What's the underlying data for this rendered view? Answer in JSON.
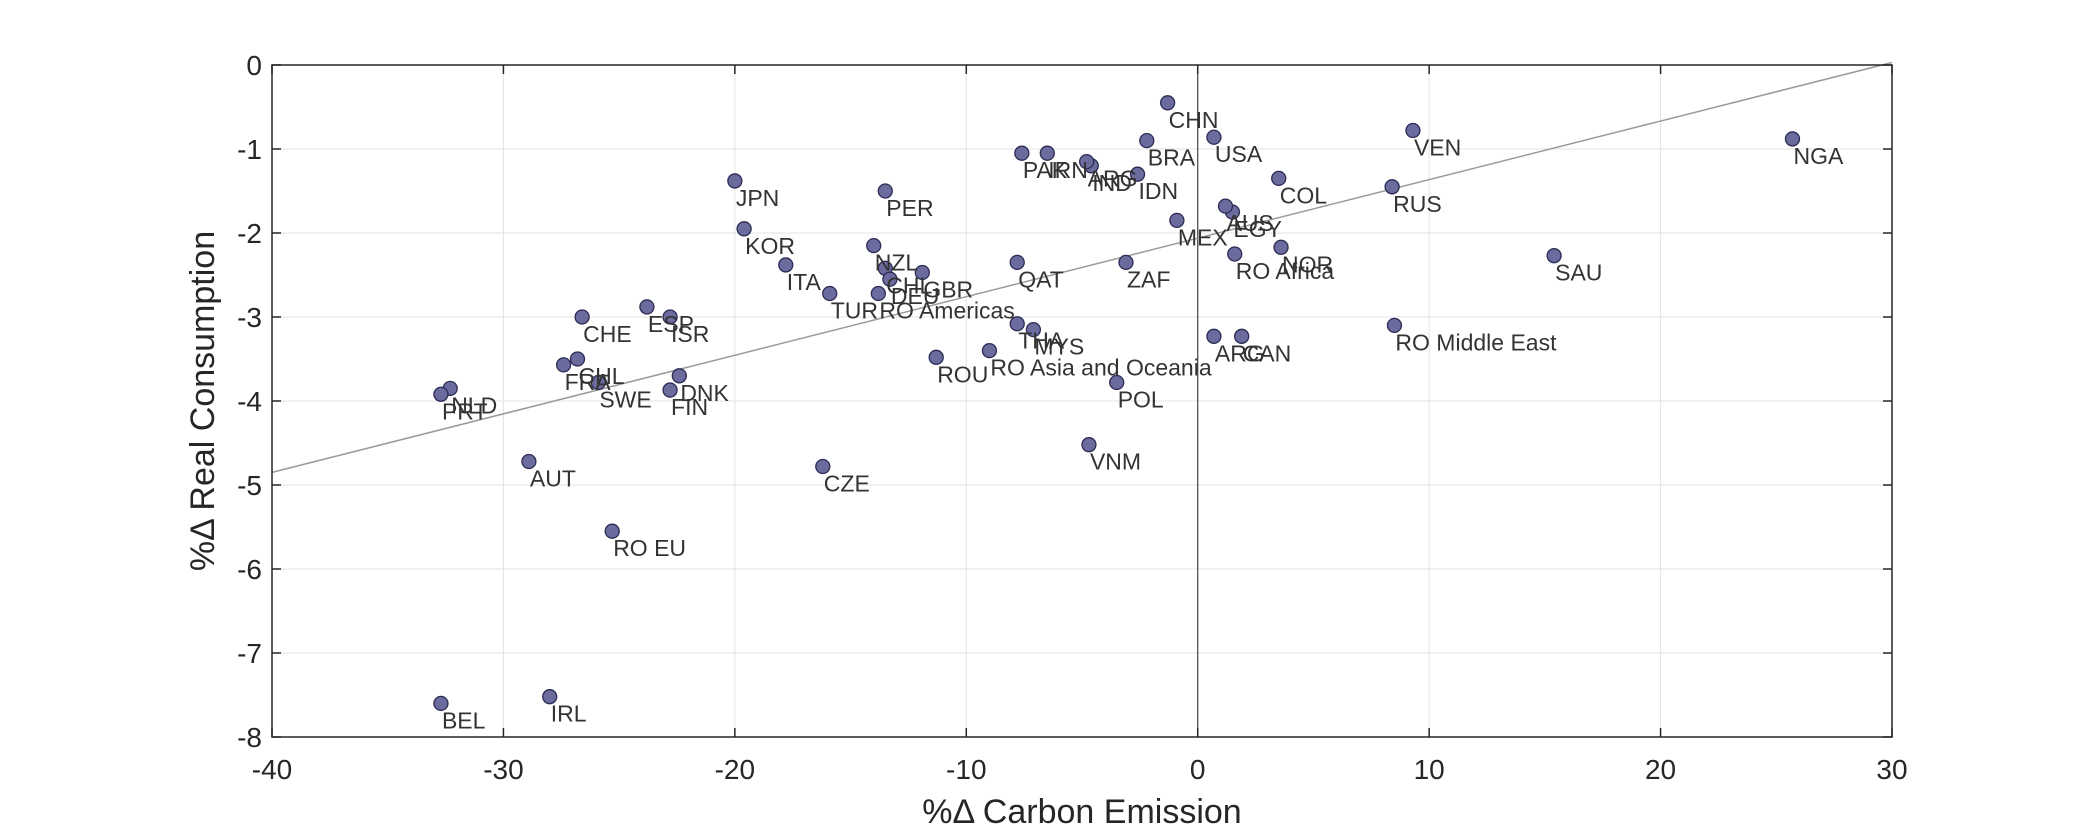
{
  "chart_data": {
    "type": "scatter",
    "title": "",
    "xlabel": "%Δ Carbon Emission",
    "ylabel": "%Δ Real Consumption",
    "xlim": [
      -40,
      30
    ],
    "ylim": [
      -8,
      0
    ],
    "xticks": [
      -40,
      -30,
      -20,
      -10,
      0,
      10,
      20,
      30
    ],
    "yticks": [
      0,
      -1,
      -2,
      -3,
      -4,
      -5,
      -6,
      -7,
      -8
    ],
    "grid": true,
    "legend": "none",
    "zero_lines": true,
    "fit_line": {
      "x": [
        -40,
        30
      ],
      "y": [
        -4.85,
        0.03
      ]
    },
    "marker_color": "#6b6b9e",
    "marker_edge": "#2b2b55",
    "points": [
      {
        "label": "NGA",
        "x": 25.7,
        "y": -0.88
      },
      {
        "label": "VEN",
        "x": 9.3,
        "y": -0.78
      },
      {
        "label": "SAU",
        "x": 15.4,
        "y": -2.27
      },
      {
        "label": "RUS",
        "x": 8.4,
        "y": -1.45
      },
      {
        "label": "RO Middle East",
        "x": 8.5,
        "y": -3.1
      },
      {
        "label": "COL",
        "x": 3.5,
        "y": -1.35
      },
      {
        "label": "NOR",
        "x": 3.6,
        "y": -2.17
      },
      {
        "label": "CAN",
        "x": 1.9,
        "y": -3.23
      },
      {
        "label": "ARG",
        "x": 0.7,
        "y": -3.23
      },
      {
        "label": "RO Africa",
        "x": 1.6,
        "y": -2.25
      },
      {
        "label": "EGY",
        "x": 1.5,
        "y": -1.75
      },
      {
        "label": "AUS",
        "x": 1.2,
        "y": -1.68
      },
      {
        "label": "USA",
        "x": 0.7,
        "y": -0.86
      },
      {
        "label": "CHN",
        "x": -1.3,
        "y": -0.45
      },
      {
        "label": "MEX",
        "x": -0.9,
        "y": -1.85
      },
      {
        "label": "IDN",
        "x": -2.6,
        "y": -1.3
      },
      {
        "label": "BRA",
        "x": -2.2,
        "y": -0.9
      },
      {
        "label": "IND",
        "x": -4.6,
        "y": -1.2
      },
      {
        "label": "ARG",
        "x": -4.8,
        "y": -1.15
      },
      {
        "label": "PAK",
        "x": -7.6,
        "y": -1.05
      },
      {
        "label": "IRN",
        "x": -6.5,
        "y": -1.05
      },
      {
        "label": "ZAF",
        "x": -3.1,
        "y": -2.35
      },
      {
        "label": "QAT",
        "x": -7.8,
        "y": -2.35
      },
      {
        "label": "POL",
        "x": -3.5,
        "y": -3.78
      },
      {
        "label": "VNM",
        "x": -4.7,
        "y": -4.52
      },
      {
        "label": "MYS",
        "x": -7.1,
        "y": -3.15
      },
      {
        "label": "THA",
        "x": -7.8,
        "y": -3.08
      },
      {
        "label": "RO Asia and Oceania",
        "x": -9.0,
        "y": -3.4
      },
      {
        "label": "ROU",
        "x": -11.3,
        "y": -3.48
      },
      {
        "label": "GBR",
        "x": -11.9,
        "y": -2.47
      },
      {
        "label": "NZL",
        "x": -14.0,
        "y": -2.15
      },
      {
        "label": "CHL",
        "x": -13.5,
        "y": -2.42
      },
      {
        "label": "DEU",
        "x": -13.3,
        "y": -2.55
      },
      {
        "label": "RO Americas",
        "x": -13.8,
        "y": -2.72
      },
      {
        "label": "PER",
        "x": -13.5,
        "y": -1.5
      },
      {
        "label": "TUR",
        "x": -15.9,
        "y": -2.72
      },
      {
        "label": "ITA",
        "x": -17.8,
        "y": -2.38
      },
      {
        "label": "KOR",
        "x": -19.6,
        "y": -1.95
      },
      {
        "label": "JPN",
        "x": -20.0,
        "y": -1.38
      },
      {
        "label": "CZE",
        "x": -16.2,
        "y": -4.78
      },
      {
        "label": "ESP",
        "x": -23.8,
        "y": -2.88
      },
      {
        "label": "ISR",
        "x": -22.8,
        "y": -3.0
      },
      {
        "label": "CHE",
        "x": -26.6,
        "y": -3.0
      },
      {
        "label": "DNK",
        "x": -22.4,
        "y": -3.7
      },
      {
        "label": "FIN",
        "x": -22.8,
        "y": -3.87
      },
      {
        "label": "FRA",
        "x": -27.4,
        "y": -3.57
      },
      {
        "label": "CHL",
        "x": -26.8,
        "y": -3.5
      },
      {
        "label": "SWE",
        "x": -25.9,
        "y": -3.78
      },
      {
        "label": "NLD",
        "x": -32.3,
        "y": -3.85
      },
      {
        "label": "PRT",
        "x": -32.7,
        "y": -3.92
      },
      {
        "label": "AUT",
        "x": -28.9,
        "y": -4.72
      },
      {
        "label": "RO EU",
        "x": -25.3,
        "y": -5.55
      },
      {
        "label": "IRL",
        "x": -28.0,
        "y": -7.52
      },
      {
        "label": "BEL",
        "x": -32.7,
        "y": -7.6
      }
    ]
  }
}
